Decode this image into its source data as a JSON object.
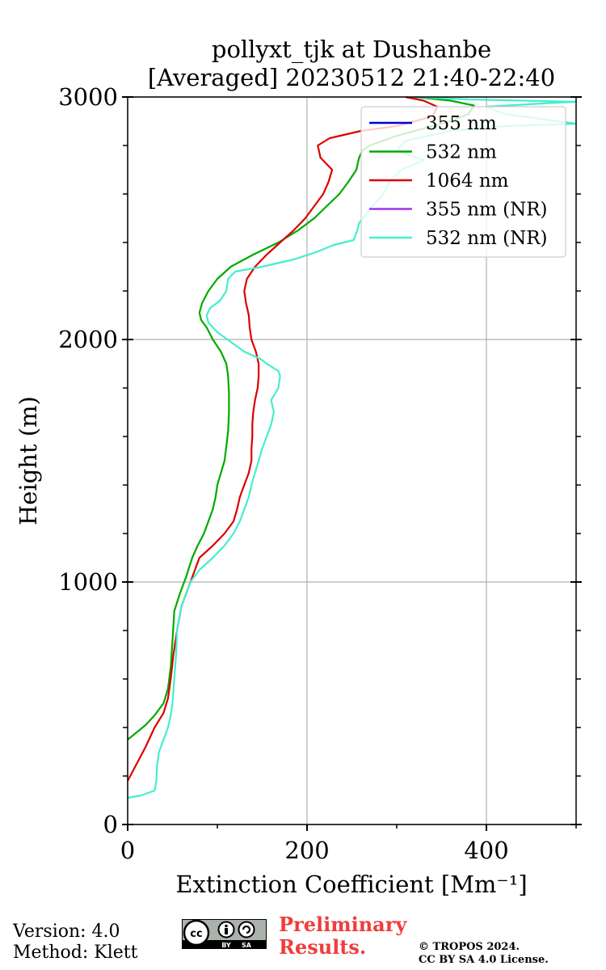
{
  "footer": {
    "version": "Version: 4.0",
    "method": "Method: Klett",
    "preliminary_line1": "Preliminary",
    "preliminary_line2": "Results.",
    "copyright_line1": "© TROPOS 2024.",
    "copyright_line2": "CC BY SA 4.0 License.",
    "license_badge": {
      "cc": "cc",
      "by": "BY",
      "sa": "SA"
    }
  },
  "chart_data": {
    "type": "line",
    "title": [
      "pollyxt_tjk at Dushanbe",
      "[Averaged] 20230512 21:40-22:40"
    ],
    "xlabel": "Extinction Coefficient [Mm⁻¹]",
    "ylabel": "Height (m)",
    "xlim": [
      0,
      500
    ],
    "ylim": [
      0,
      3000
    ],
    "xticks": [
      0,
      200,
      400
    ],
    "yticks": [
      0,
      1000,
      2000,
      3000
    ],
    "x_minor_step": 100,
    "y_minor_step": 200,
    "grid": true,
    "legend_position": "upper right",
    "series": [
      {
        "name": "355 nm",
        "color": "#0000e0",
        "points": []
      },
      {
        "name": "532 nm",
        "color": "#00aa00",
        "points": [
          [
            0,
            350
          ],
          [
            10,
            380
          ],
          [
            20,
            410
          ],
          [
            30,
            450
          ],
          [
            40,
            500
          ],
          [
            45,
            560
          ],
          [
            48,
            650
          ],
          [
            50,
            760
          ],
          [
            52,
            880
          ],
          [
            58,
            950
          ],
          [
            65,
            1020
          ],
          [
            72,
            1100
          ],
          [
            78,
            1150
          ],
          [
            85,
            1200
          ],
          [
            90,
            1250
          ],
          [
            95,
            1300
          ],
          [
            98,
            1350
          ],
          [
            100,
            1400
          ],
          [
            104,
            1450
          ],
          [
            108,
            1500
          ],
          [
            110,
            1560
          ],
          [
            112,
            1620
          ],
          [
            113,
            1700
          ],
          [
            113,
            1780
          ],
          [
            112,
            1850
          ],
          [
            110,
            1900
          ],
          [
            104,
            1950
          ],
          [
            95,
            2000
          ],
          [
            88,
            2050
          ],
          [
            82,
            2080
          ],
          [
            80,
            2110
          ],
          [
            83,
            2150
          ],
          [
            90,
            2200
          ],
          [
            100,
            2250
          ],
          [
            115,
            2300
          ],
          [
            140,
            2350
          ],
          [
            168,
            2400
          ],
          [
            190,
            2450
          ],
          [
            208,
            2500
          ],
          [
            222,
            2550
          ],
          [
            236,
            2600
          ],
          [
            246,
            2650
          ],
          [
            255,
            2700
          ],
          [
            258,
            2750
          ],
          [
            262,
            2780
          ],
          [
            270,
            2800
          ],
          [
            300,
            2840
          ],
          [
            330,
            2870
          ],
          [
            360,
            2900
          ],
          [
            380,
            2930
          ],
          [
            386,
            2965
          ],
          [
            360,
            2985
          ],
          [
            320,
            3000
          ]
        ]
      },
      {
        "name": "1064 nm",
        "color": "#dd0000",
        "points": [
          [
            0,
            180
          ],
          [
            10,
            250
          ],
          [
            20,
            320
          ],
          [
            30,
            400
          ],
          [
            40,
            460
          ],
          [
            45,
            520
          ],
          [
            48,
            600
          ],
          [
            51,
            700
          ],
          [
            55,
            800
          ],
          [
            60,
            900
          ],
          [
            70,
            1000
          ],
          [
            80,
            1100
          ],
          [
            95,
            1150
          ],
          [
            108,
            1200
          ],
          [
            118,
            1250
          ],
          [
            122,
            1300
          ],
          [
            125,
            1350
          ],
          [
            130,
            1400
          ],
          [
            135,
            1450
          ],
          [
            138,
            1500
          ],
          [
            138,
            1550
          ],
          [
            139,
            1600
          ],
          [
            139,
            1650
          ],
          [
            140,
            1700
          ],
          [
            142,
            1750
          ],
          [
            145,
            1800
          ],
          [
            146,
            1850
          ],
          [
            146,
            1900
          ],
          [
            143,
            1950
          ],
          [
            138,
            2000
          ],
          [
            136,
            2050
          ],
          [
            135,
            2100
          ],
          [
            132,
            2150
          ],
          [
            130,
            2200
          ],
          [
            133,
            2250
          ],
          [
            142,
            2300
          ],
          [
            155,
            2350
          ],
          [
            170,
            2400
          ],
          [
            185,
            2450
          ],
          [
            198,
            2500
          ],
          [
            208,
            2550
          ],
          [
            218,
            2600
          ],
          [
            224,
            2650
          ],
          [
            228,
            2700
          ],
          [
            215,
            2750
          ],
          [
            212,
            2800
          ],
          [
            225,
            2830
          ],
          [
            260,
            2860
          ],
          [
            300,
            2880
          ],
          [
            340,
            2920
          ],
          [
            345,
            2960
          ],
          [
            330,
            2985
          ],
          [
            310,
            3000
          ]
        ]
      },
      {
        "name": "355 nm (NR)",
        "color": "#a033ee",
        "points": []
      },
      {
        "name": "532 nm (NR)",
        "color": "#44eecc",
        "points": [
          [
            0,
            110
          ],
          [
            15,
            120
          ],
          [
            30,
            140
          ],
          [
            32,
            180
          ],
          [
            33,
            250
          ],
          [
            35,
            300
          ],
          [
            40,
            350
          ],
          [
            45,
            400
          ],
          [
            48,
            450
          ],
          [
            50,
            500
          ],
          [
            52,
            600
          ],
          [
            54,
            700
          ],
          [
            55,
            800
          ],
          [
            60,
            900
          ],
          [
            70,
            1000
          ],
          [
            80,
            1050
          ],
          [
            95,
            1100
          ],
          [
            108,
            1150
          ],
          [
            118,
            1200
          ],
          [
            125,
            1250
          ],
          [
            130,
            1300
          ],
          [
            135,
            1350
          ],
          [
            138,
            1400
          ],
          [
            142,
            1450
          ],
          [
            146,
            1500
          ],
          [
            150,
            1550
          ],
          [
            155,
            1600
          ],
          [
            160,
            1650
          ],
          [
            163,
            1700
          ],
          [
            160,
            1750
          ],
          [
            168,
            1800
          ],
          [
            170,
            1850
          ],
          [
            168,
            1870
          ],
          [
            155,
            1900
          ],
          [
            148,
            1920
          ],
          [
            130,
            1950
          ],
          [
            115,
            1990
          ],
          [
            100,
            2030
          ],
          [
            90,
            2070
          ],
          [
            88,
            2100
          ],
          [
            92,
            2130
          ],
          [
            103,
            2160
          ],
          [
            110,
            2200
          ],
          [
            112,
            2250
          ],
          [
            120,
            2280
          ],
          [
            150,
            2300
          ],
          [
            185,
            2330
          ],
          [
            210,
            2360
          ],
          [
            230,
            2390
          ],
          [
            252,
            2410
          ],
          [
            256,
            2450
          ],
          [
            258,
            2480
          ],
          [
            265,
            2510
          ],
          [
            270,
            2540
          ],
          [
            278,
            2570
          ],
          [
            285,
            2600
          ],
          [
            292,
            2650
          ],
          [
            305,
            2700
          ],
          [
            330,
            2740
          ],
          [
            300,
            2780
          ],
          [
            310,
            2820
          ],
          [
            360,
            2860
          ],
          [
            420,
            2880
          ],
          [
            500,
            2890
          ],
          [
            420,
            2930
          ],
          [
            400,
            2960
          ],
          [
            470,
            2975
          ],
          [
            500,
            2980
          ],
          [
            380,
            2990
          ],
          [
            320,
            3000
          ]
        ]
      }
    ]
  }
}
